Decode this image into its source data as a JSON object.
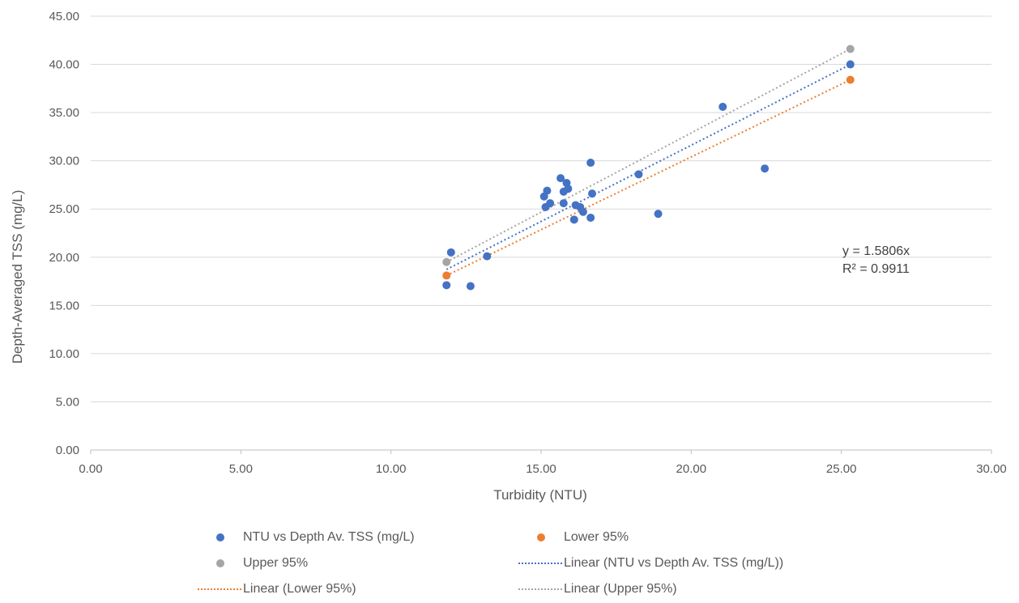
{
  "chart_data": {
    "type": "scatter",
    "xlabel": "Turbidity  (NTU)",
    "ylabel": "Depth-Averaged  TSS (mg/L)",
    "xlim": [
      0,
      30
    ],
    "ylim": [
      0,
      45
    ],
    "xticks": [
      "0.00",
      "5.00",
      "10.00",
      "15.00",
      "20.00",
      "25.00",
      "30.00"
    ],
    "yticks": [
      "0.00",
      "5.00",
      "10.00",
      "15.00",
      "20.00",
      "25.00",
      "30.00",
      "35.00",
      "40.00",
      "45.00"
    ],
    "grid": "horizontal",
    "legend_position": "bottom",
    "series": [
      {
        "name": "NTU vs Depth Av. TSS (mg/L)",
        "color": "#4472c4",
        "points": [
          [
            11.85,
            17.1
          ],
          [
            12.0,
            20.5
          ],
          [
            12.65,
            17.0
          ],
          [
            13.2,
            20.1
          ],
          [
            15.1,
            26.3
          ],
          [
            15.15,
            25.2
          ],
          [
            15.2,
            26.9
          ],
          [
            15.3,
            25.6
          ],
          [
            15.65,
            28.2
          ],
          [
            15.75,
            25.6
          ],
          [
            15.75,
            26.8
          ],
          [
            15.85,
            27.7
          ],
          [
            15.9,
            27.1
          ],
          [
            16.1,
            23.9
          ],
          [
            16.15,
            25.4
          ],
          [
            16.3,
            25.2
          ],
          [
            16.4,
            24.7
          ],
          [
            16.65,
            24.1
          ],
          [
            16.65,
            29.8
          ],
          [
            16.7,
            26.6
          ],
          [
            18.25,
            28.6
          ],
          [
            18.9,
            24.5
          ],
          [
            21.05,
            35.6
          ],
          [
            22.45,
            29.2
          ],
          [
            25.3,
            40.0
          ]
        ]
      },
      {
        "name": "Lower 95%",
        "color": "#ed7d31",
        "points": [
          [
            11.85,
            18.1
          ],
          [
            25.3,
            38.4
          ]
        ]
      },
      {
        "name": "Upper 95%",
        "color": "#a5a5a5",
        "points": [
          [
            11.85,
            19.5
          ],
          [
            25.3,
            41.6
          ]
        ]
      },
      {
        "name": "Linear (NTU vs Depth Av. TSS (mg/L))",
        "color": "#4472c4",
        "trendline": [
          [
            11.85,
            18.73
          ],
          [
            25.3,
            39.99
          ]
        ]
      },
      {
        "name": "Linear (Lower 95%)",
        "color": "#ed7d31",
        "trendline": [
          [
            11.85,
            18.1
          ],
          [
            25.3,
            38.4
          ]
        ]
      },
      {
        "name": "Linear (Upper 95%)",
        "color": "#a5a5a5",
        "trendline": [
          [
            11.85,
            19.5
          ],
          [
            25.3,
            41.6
          ]
        ]
      }
    ],
    "annotations": [
      "y = 1.5806x",
      "R² = 0.9911"
    ]
  },
  "legend": {
    "items": [
      {
        "label": "NTU vs Depth Av. TSS (mg/L)",
        "kind": "dot",
        "color": "#4472c4"
      },
      {
        "label": "Lower 95%",
        "kind": "dot",
        "color": "#ed7d31"
      },
      {
        "label": "Upper 95%",
        "kind": "dot",
        "color": "#a5a5a5"
      },
      {
        "label": "Linear (NTU vs Depth Av. TSS (mg/L))",
        "kind": "line",
        "color": "#4472c4"
      },
      {
        "label": "Linear (Lower 95%)",
        "kind": "line",
        "color": "#ed7d31"
      },
      {
        "label": "Linear (Upper 95%)",
        "kind": "line",
        "color": "#a5a5a5"
      }
    ]
  }
}
